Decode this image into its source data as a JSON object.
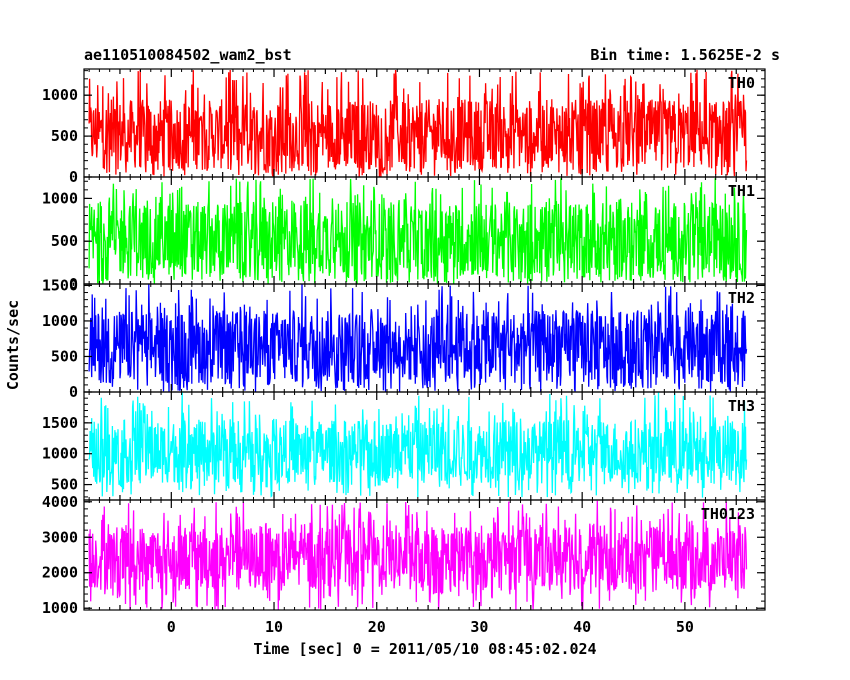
{
  "header": {
    "title": "ae110510084502_wam2_bst",
    "bin_time": "Bin time: 1.5625E-2 s"
  },
  "chart_data": {
    "type": "line",
    "title": "ae110510084502_wam2_bst",
    "subtitle": "Bin time: 1.5625E-2 s",
    "xlabel": "Time [sec] 0 = 2011/05/10 08:45:02.024",
    "ylabel": "Counts/sec",
    "xlim": [
      -8.5,
      57.8
    ],
    "x_range_data": [
      -8,
      56
    ],
    "x_ticks": [
      0,
      10,
      20,
      30,
      40,
      50
    ],
    "x_tick_labels": [
      "0",
      "10",
      "20",
      "30",
      "40",
      "50"
    ],
    "grid": false,
    "panels": [
      {
        "name": "TH0",
        "color": "#ff0000",
        "ylim": [
          0,
          1320
        ],
        "y_ticks": [
          0,
          500,
          1000
        ],
        "y_tick_labels": [
          "0",
          "500",
          "1000"
        ],
        "typical_low": 90,
        "typical_high": 950,
        "min": 0,
        "max": 1320
      },
      {
        "name": "TH1",
        "color": "#00ff00",
        "ylim": [
          0,
          1250
        ],
        "y_ticks": [
          0,
          500,
          1000
        ],
        "y_tick_labels": [
          "0",
          "500",
          "1000"
        ],
        "typical_low": 80,
        "typical_high": 960,
        "min": 0,
        "max": 1250
      },
      {
        "name": "TH2",
        "color": "#0000ff",
        "ylim": [
          0,
          1520
        ],
        "y_ticks": [
          0,
          500,
          1000,
          1500
        ],
        "y_tick_labels": [
          "0",
          "500",
          "1000",
          "1500"
        ],
        "typical_low": 120,
        "typical_high": 1150,
        "min": 0,
        "max": 1520
      },
      {
        "name": "TH3",
        "color": "#00ffff",
        "ylim": [
          250,
          2000
        ],
        "y_ticks": [
          500,
          1000,
          1500
        ],
        "y_tick_labels": [
          "500",
          "1000",
          "1500"
        ],
        "typical_low": 520,
        "typical_high": 1550,
        "min": 280,
        "max": 2000
      },
      {
        "name": "TH0123",
        "color": "#ff00ff",
        "ylim": [
          950,
          4050
        ],
        "y_ticks": [
          1000,
          2000,
          3000,
          4000
        ],
        "y_tick_labels": [
          "1000",
          "2000",
          "3000",
          "4000"
        ],
        "typical_low": 1500,
        "typical_high": 3350,
        "min": 950,
        "max": 4050
      }
    ]
  }
}
